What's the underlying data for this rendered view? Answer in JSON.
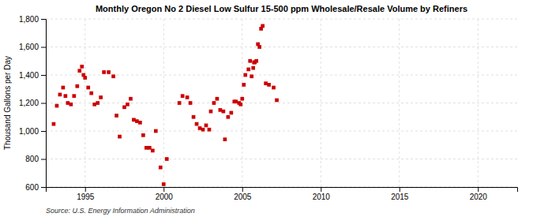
{
  "chart_data": {
    "type": "scatter",
    "title": "Monthly Oregon No 2 Diesel Low Sulfur 15-500 ppm Wholesale/Resale Volume by Refiners",
    "y_label": "Thousand Gallons per Day",
    "source": "Source: U.S. Energy Information Administration",
    "color": "#cc0000",
    "marker": "square",
    "grid": true,
    "xlim": [
      1992.5,
      2022.5
    ],
    "ylim": [
      600,
      1800
    ],
    "xticks": [
      1995,
      2000,
      2005,
      2010,
      2015,
      2020
    ],
    "yticks": [
      600,
      800,
      {
        "value": 1000,
        "label": "1,000"
      },
      {
        "value": 1200,
        "label": "1,200"
      },
      {
        "value": 1400,
        "label": "1,400"
      },
      {
        "value": 1600,
        "label": "1,600"
      },
      {
        "value": 1800,
        "label": "1,800"
      }
    ],
    "x": [
      1993.0,
      1993.2,
      1993.4,
      1993.6,
      1993.75,
      1993.9,
      1994.1,
      1994.3,
      1994.5,
      1994.65,
      1994.8,
      1994.9,
      1995.0,
      1995.2,
      1995.4,
      1995.6,
      1995.8,
      1996.0,
      1996.2,
      1996.5,
      1996.8,
      1997.0,
      1997.2,
      1997.5,
      1997.7,
      1997.9,
      1998.1,
      1998.3,
      1998.5,
      1998.7,
      1998.9,
      1999.1,
      1999.3,
      1999.5,
      1999.8,
      2000.0,
      2000.2,
      2001.0,
      2001.2,
      2001.5,
      2001.7,
      2001.9,
      2002.1,
      2002.3,
      2002.5,
      2002.7,
      2002.9,
      2003.0,
      2003.2,
      2003.4,
      2003.6,
      2003.8,
      2003.9,
      2004.1,
      2004.3,
      2004.5,
      2004.6,
      2004.8,
      2004.9,
      2005.0,
      2005.1,
      2005.2,
      2005.4,
      2005.5,
      2005.6,
      2005.7,
      2005.75,
      2005.8,
      2005.9,
      2006.0,
      2006.1,
      2006.2,
      2006.3,
      2006.5,
      2006.7,
      2007.0,
      2007.2
    ],
    "values": [
      1050,
      1180,
      1260,
      1310,
      1250,
      1200,
      1190,
      1250,
      1320,
      1430,
      1460,
      1400,
      1380,
      1310,
      1270,
      1190,
      1200,
      1240,
      1420,
      1420,
      1390,
      1110,
      960,
      1170,
      1190,
      1230,
      1080,
      1070,
      1060,
      970,
      880,
      880,
      860,
      1000,
      740,
      620,
      800,
      1200,
      1250,
      1240,
      1200,
      1100,
      1050,
      1020,
      1010,
      1040,
      1010,
      1140,
      1200,
      1230,
      1150,
      1140,
      940,
      1100,
      1130,
      1210,
      1210,
      1200,
      1190,
      1230,
      1330,
      1400,
      1440,
      1500,
      1390,
      1450,
      1490,
      1490,
      1500,
      1620,
      1600,
      1730,
      1750,
      1340,
      1330,
      1310,
      1220
    ]
  }
}
